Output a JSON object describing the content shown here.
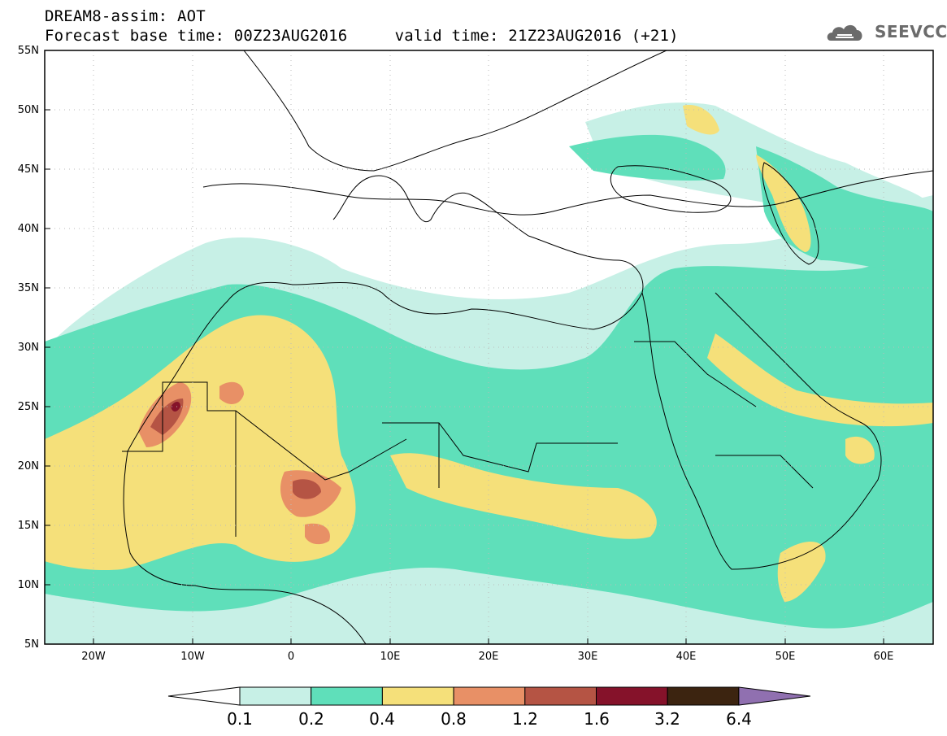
{
  "header": {
    "title_line1": "DREAM8-assim: AOT",
    "title_line2": "Forecast base time: 00Z23AUG2016     valid time: 21Z23AUG2016 (+21)"
  },
  "logo": {
    "text": "SEEVCCC",
    "icon": "cloud-icon",
    "color": "#6b6b6b"
  },
  "map": {
    "projection": "lat-lon",
    "lon_range": [
      -25,
      65
    ],
    "lat_range": [
      5,
      55
    ],
    "lat_labels": [
      "55N",
      "50N",
      "45N",
      "40N",
      "35N",
      "30N",
      "25N",
      "20N",
      "15N",
      "10N",
      "5N"
    ],
    "lon_labels": [
      "20W",
      "10W",
      "0",
      "10E",
      "20E",
      "30E",
      "40E",
      "50E",
      "60E"
    ],
    "gridlines": "dotted",
    "variable": "AOT"
  },
  "colorbar": {
    "levels": [
      "0.1",
      "0.2",
      "0.4",
      "0.8",
      "1.2",
      "1.6",
      "3.2",
      "6.4"
    ],
    "colors": [
      "#c7f0e6",
      "#5fdfba",
      "#f5e07a",
      "#e89066",
      "#b55444",
      "#85122a",
      "#3c2410",
      "#9070b0"
    ],
    "low_extend_color": "#ffffff",
    "high_extend_color": "#9070b0"
  }
}
